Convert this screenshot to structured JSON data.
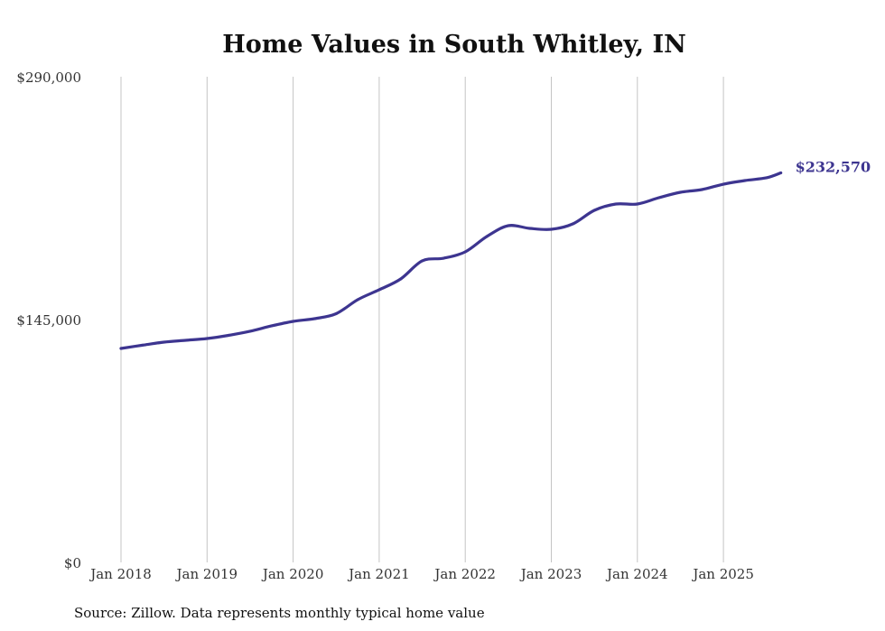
{
  "chart_data": {
    "type": "line",
    "title": "Home Values in South Whitley, IN",
    "xlabel": "",
    "ylabel": "",
    "source": "Source: Zillow. Data represents monthly typical home value",
    "ylim": [
      0,
      290000
    ],
    "y_ticks": [
      0,
      145000,
      290000
    ],
    "y_tick_labels": [
      "$0",
      "$145,000",
      "$290,000"
    ],
    "x_ticks": [
      2018,
      2019,
      2020,
      2021,
      2022,
      2023,
      2024,
      2025
    ],
    "x_tick_labels": [
      "Jan 2018",
      "Jan 2019",
      "Jan 2020",
      "Jan 2021",
      "Jan 2022",
      "Jan 2023",
      "Jan 2024",
      "Jan 2025"
    ],
    "grid": "vertical",
    "line_color": "#3d3590",
    "end_label": "$232,570",
    "series": [
      {
        "name": "Typical home value",
        "x": [
          "2018-01",
          "2018-04",
          "2018-07",
          "2018-10",
          "2019-01",
          "2019-04",
          "2019-07",
          "2019-10",
          "2020-01",
          "2020-04",
          "2020-07",
          "2020-10",
          "2021-01",
          "2021-04",
          "2021-07",
          "2021-10",
          "2022-01",
          "2022-04",
          "2022-07",
          "2022-10",
          "2023-01",
          "2023-04",
          "2023-07",
          "2023-10",
          "2024-01",
          "2024-04",
          "2024-07",
          "2024-10",
          "2025-01",
          "2025-04",
          "2025-07",
          "2025-09"
        ],
        "values": [
          127750,
          129700,
          131530,
          132600,
          133680,
          135570,
          138000,
          141230,
          143920,
          145540,
          148500,
          156860,
          162790,
          169260,
          180040,
          181650,
          185430,
          194590,
          201060,
          199440,
          198900,
          202140,
          210220,
          213990,
          214000,
          217770,
          221000,
          222620,
          225850,
          228010,
          229630,
          232570
        ]
      }
    ]
  }
}
